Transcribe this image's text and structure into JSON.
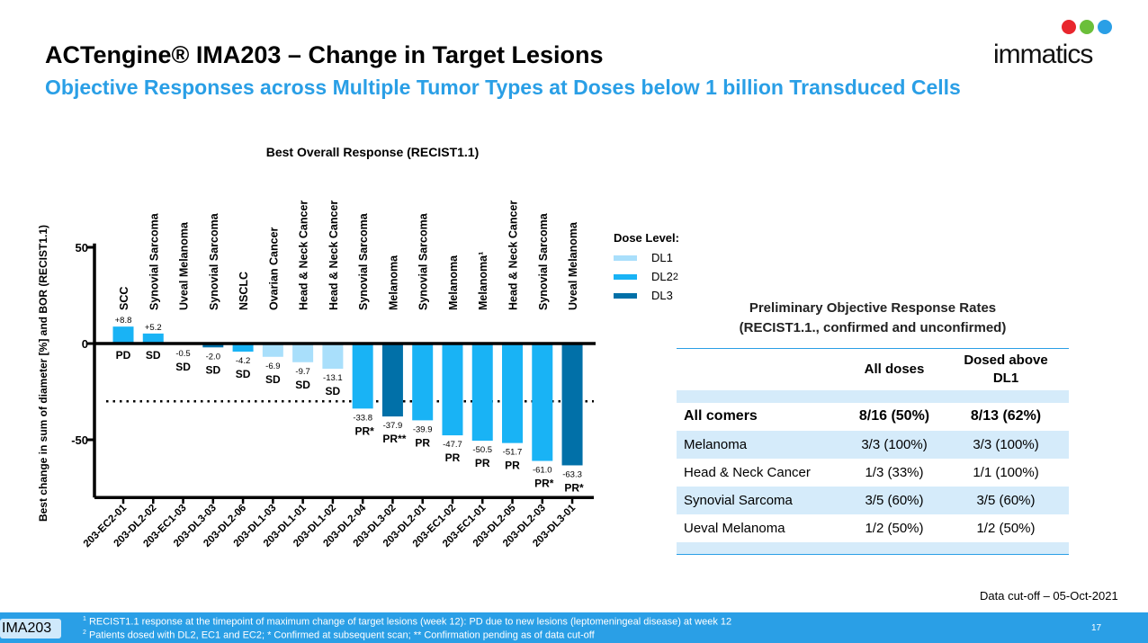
{
  "header": {
    "title": "ACTengine® IMA203 – Change in Target Lesions",
    "subtitle": "Objective Responses across Multiple Tumor Types at Doses below 1 billion Transduced Cells"
  },
  "logo": {
    "text": "immatics",
    "colors": [
      "#e8262d",
      "#6bbf3a",
      "#2a9fe6"
    ]
  },
  "chart_data": {
    "type": "bar",
    "title": "Best Overall Response (RECIST1.1)",
    "ylabel": "Best change in sum of diameter [%] and BOR (RECIST1.1)",
    "ylim": [
      -80,
      52
    ],
    "yticks": [
      50,
      0,
      -50
    ],
    "threshold_line": -30,
    "categories": [
      "203-EC2-01",
      "203-DL2-02",
      "203-EC1-03",
      "203-DL3-03",
      "203-DL2-06",
      "203-DL1-03",
      "203-DL1-01",
      "203-DL1-02",
      "203-DL2-04",
      "203-DL3-02",
      "203-DL2-01",
      "203-EC1-02",
      "203-EC1-01",
      "203-DL2-05",
      "203-DL2-03",
      "203-DL3-01"
    ],
    "tumor_types": [
      "SCC",
      "Synovial Sarcoma",
      "Uveal Melanoma",
      "Synovial Sarcoma",
      "NSCLC",
      "Ovarian Cancer",
      "Head & Neck Cancer",
      "Head & Neck Cancer",
      "Synovial Sarcoma",
      "Melanoma",
      "Synovial Sarcoma",
      "Melanoma",
      "Melanoma¹",
      "Head & Neck Cancer",
      "Synovial Sarcoma",
      "Uveal Melanoma"
    ],
    "values": [
      8.8,
      5.2,
      -0.5,
      -2.0,
      -4.2,
      -6.9,
      -9.7,
      -13.1,
      -33.8,
      -37.9,
      -39.9,
      -47.7,
      -50.5,
      -51.7,
      -61.0,
      -63.3
    ],
    "value_labels": [
      "+8.8",
      "+5.2",
      "-0.5",
      "-2.0",
      "-4.2",
      "-6.9",
      "-9.7",
      "-13.1",
      "-33.8",
      "-37.9",
      "-39.9",
      "-47.7",
      "-50.5",
      "-51.7",
      "-61.0",
      "-63.3"
    ],
    "bor": [
      "PD",
      "SD",
      "SD",
      "SD",
      "SD",
      "SD",
      "SD",
      "SD",
      "PR*",
      "PR**",
      "PR",
      "PR",
      "PR",
      "PR",
      "PR*",
      "PR*"
    ],
    "dose": [
      "DL2",
      "DL2",
      "DL2",
      "DL3",
      "DL2",
      "DL1",
      "DL1",
      "DL1",
      "DL2",
      "DL3",
      "DL2",
      "DL2",
      "DL2",
      "DL2",
      "DL2",
      "DL3"
    ],
    "legend": {
      "title": "Dose Level:",
      "items": [
        {
          "name": "DL1",
          "sup": "",
          "color": "#a9dffb"
        },
        {
          "name": "DL2",
          "sup": "2",
          "color": "#19b3f5"
        },
        {
          "name": "DL3",
          "sup": "",
          "color": "#0170a8"
        }
      ]
    }
  },
  "orr": {
    "title_line1": "Preliminary Objective Response Rates",
    "title_line2": "(RECIST1.1., confirmed and unconfirmed)",
    "columns": [
      "",
      "All doses",
      "Dosed above DL1"
    ],
    "rows": [
      [
        "All comers",
        "8/16 (50%)",
        "8/13 (62%)"
      ],
      [
        "Melanoma",
        "3/3 (100%)",
        "3/3 (100%)"
      ],
      [
        "Head & Neck Cancer",
        "1/3 (33%)",
        "1/1 (100%)"
      ],
      [
        "Synovial Sarcoma",
        "3/5 (60%)",
        "3/5 (60%)"
      ],
      [
        "Ueval Melanoma",
        "1/2 (50%)",
        "1/2 (50%)"
      ]
    ]
  },
  "cutoff": "Data cut-off – 05-Oct-2021",
  "footer": {
    "tag": "IMA203",
    "note1_sup": "1",
    "note1": " RECIST1.1 response at the timepoint of maximum change of target lesions (week 12): PD due to new lesions (leptomeningeal disease) at week 12",
    "note2_sup": "2",
    "note2": " Patients dosed with DL2, EC1 and EC2; * Confirmed at subsequent scan; ** Confirmation pending as of data cut-off",
    "page": "17"
  }
}
